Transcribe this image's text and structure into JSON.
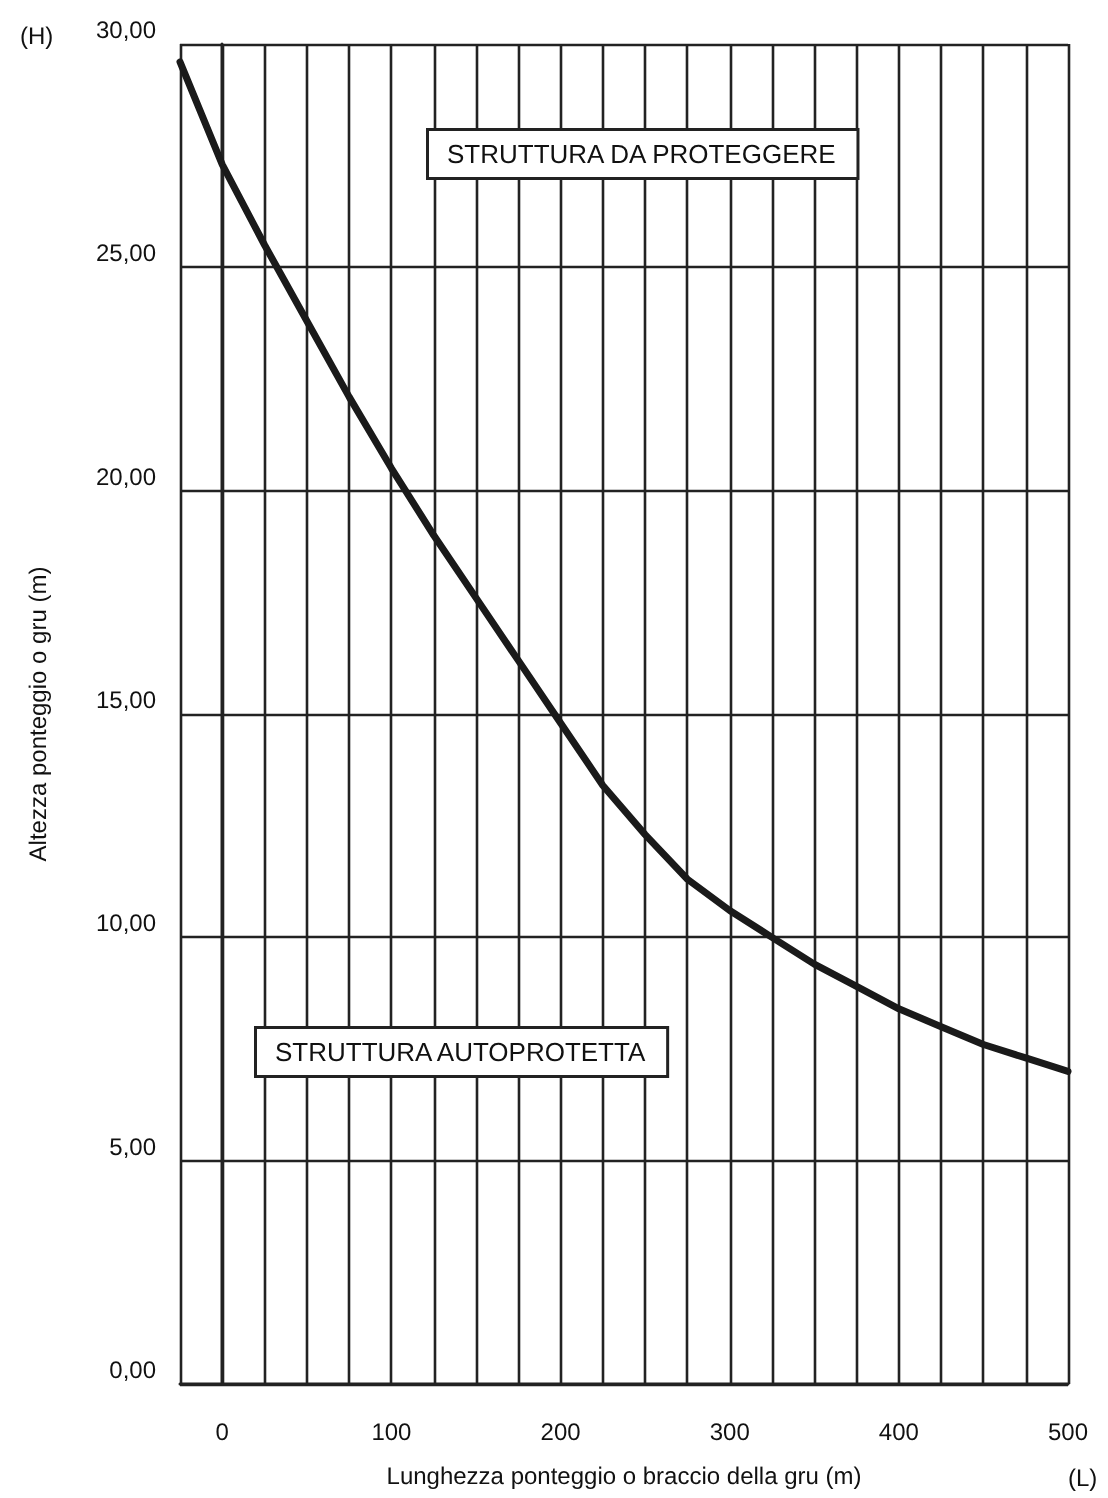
{
  "chart_data": {
    "type": "line",
    "xlabel": "Lunghezza ponteggio o braccio della gru (m)",
    "ylabel": "Altezza ponteggio o gru (m)",
    "annotations": [
      "STRUTTURA DA PROTEGGERE",
      "STRUTTURA AUTOPROTETTA",
      "(H)",
      "(L)"
    ],
    "x": [
      -25,
      0,
      25,
      50,
      75,
      100,
      125,
      150,
      175,
      200,
      225,
      250,
      275,
      300,
      325,
      350,
      375,
      400,
      425,
      450,
      475,
      500
    ],
    "series": [
      {
        "color": "#1a1a1a",
        "values": [
          29.6,
          27.3,
          25.5,
          23.8,
          22.1,
          20.5,
          19.0,
          17.6,
          16.2,
          14.8,
          13.4,
          12.3,
          11.3,
          10.6,
          10.0,
          9.4,
          8.9,
          8.4,
          8.0,
          7.6,
          7.3,
          7.0
        ]
      }
    ],
    "xlim": [
      -25,
      500
    ],
    "xticks": [
      {
        "value": -25,
        "label": null
      },
      0,
      {
        "value": 25,
        "label": null
      },
      {
        "value": 50,
        "label": null
      },
      {
        "value": 75,
        "label": null
      },
      100,
      {
        "value": 125,
        "label": null
      },
      {
        "value": 150,
        "label": null
      },
      {
        "value": 175,
        "label": null
      },
      200,
      {
        "value": 225,
        "label": null
      },
      {
        "value": 250,
        "label": null
      },
      {
        "value": 275,
        "label": null
      },
      300,
      {
        "value": 325,
        "label": null
      },
      {
        "value": 350,
        "label": null
      },
      {
        "value": 375,
        "label": null
      },
      400,
      {
        "value": 425,
        "label": null
      },
      {
        "value": 450,
        "label": null
      },
      {
        "value": 475,
        "label": null
      },
      500
    ],
    "ylim": [
      0,
      30
    ],
    "yticks": [
      {
        "value": 0,
        "label": "0,00"
      },
      {
        "value": 5,
        "label": "5,00"
      },
      {
        "value": 10,
        "label": "10,00"
      },
      {
        "value": 15,
        "label": "15,00"
      },
      {
        "value": 20,
        "label": "20,00"
      },
      {
        "value": 25,
        "label": "25,00"
      },
      {
        "value": 30,
        "label": "30,00"
      }
    ],
    "grid": true,
    "marker": "none",
    "line_style": "solid"
  }
}
